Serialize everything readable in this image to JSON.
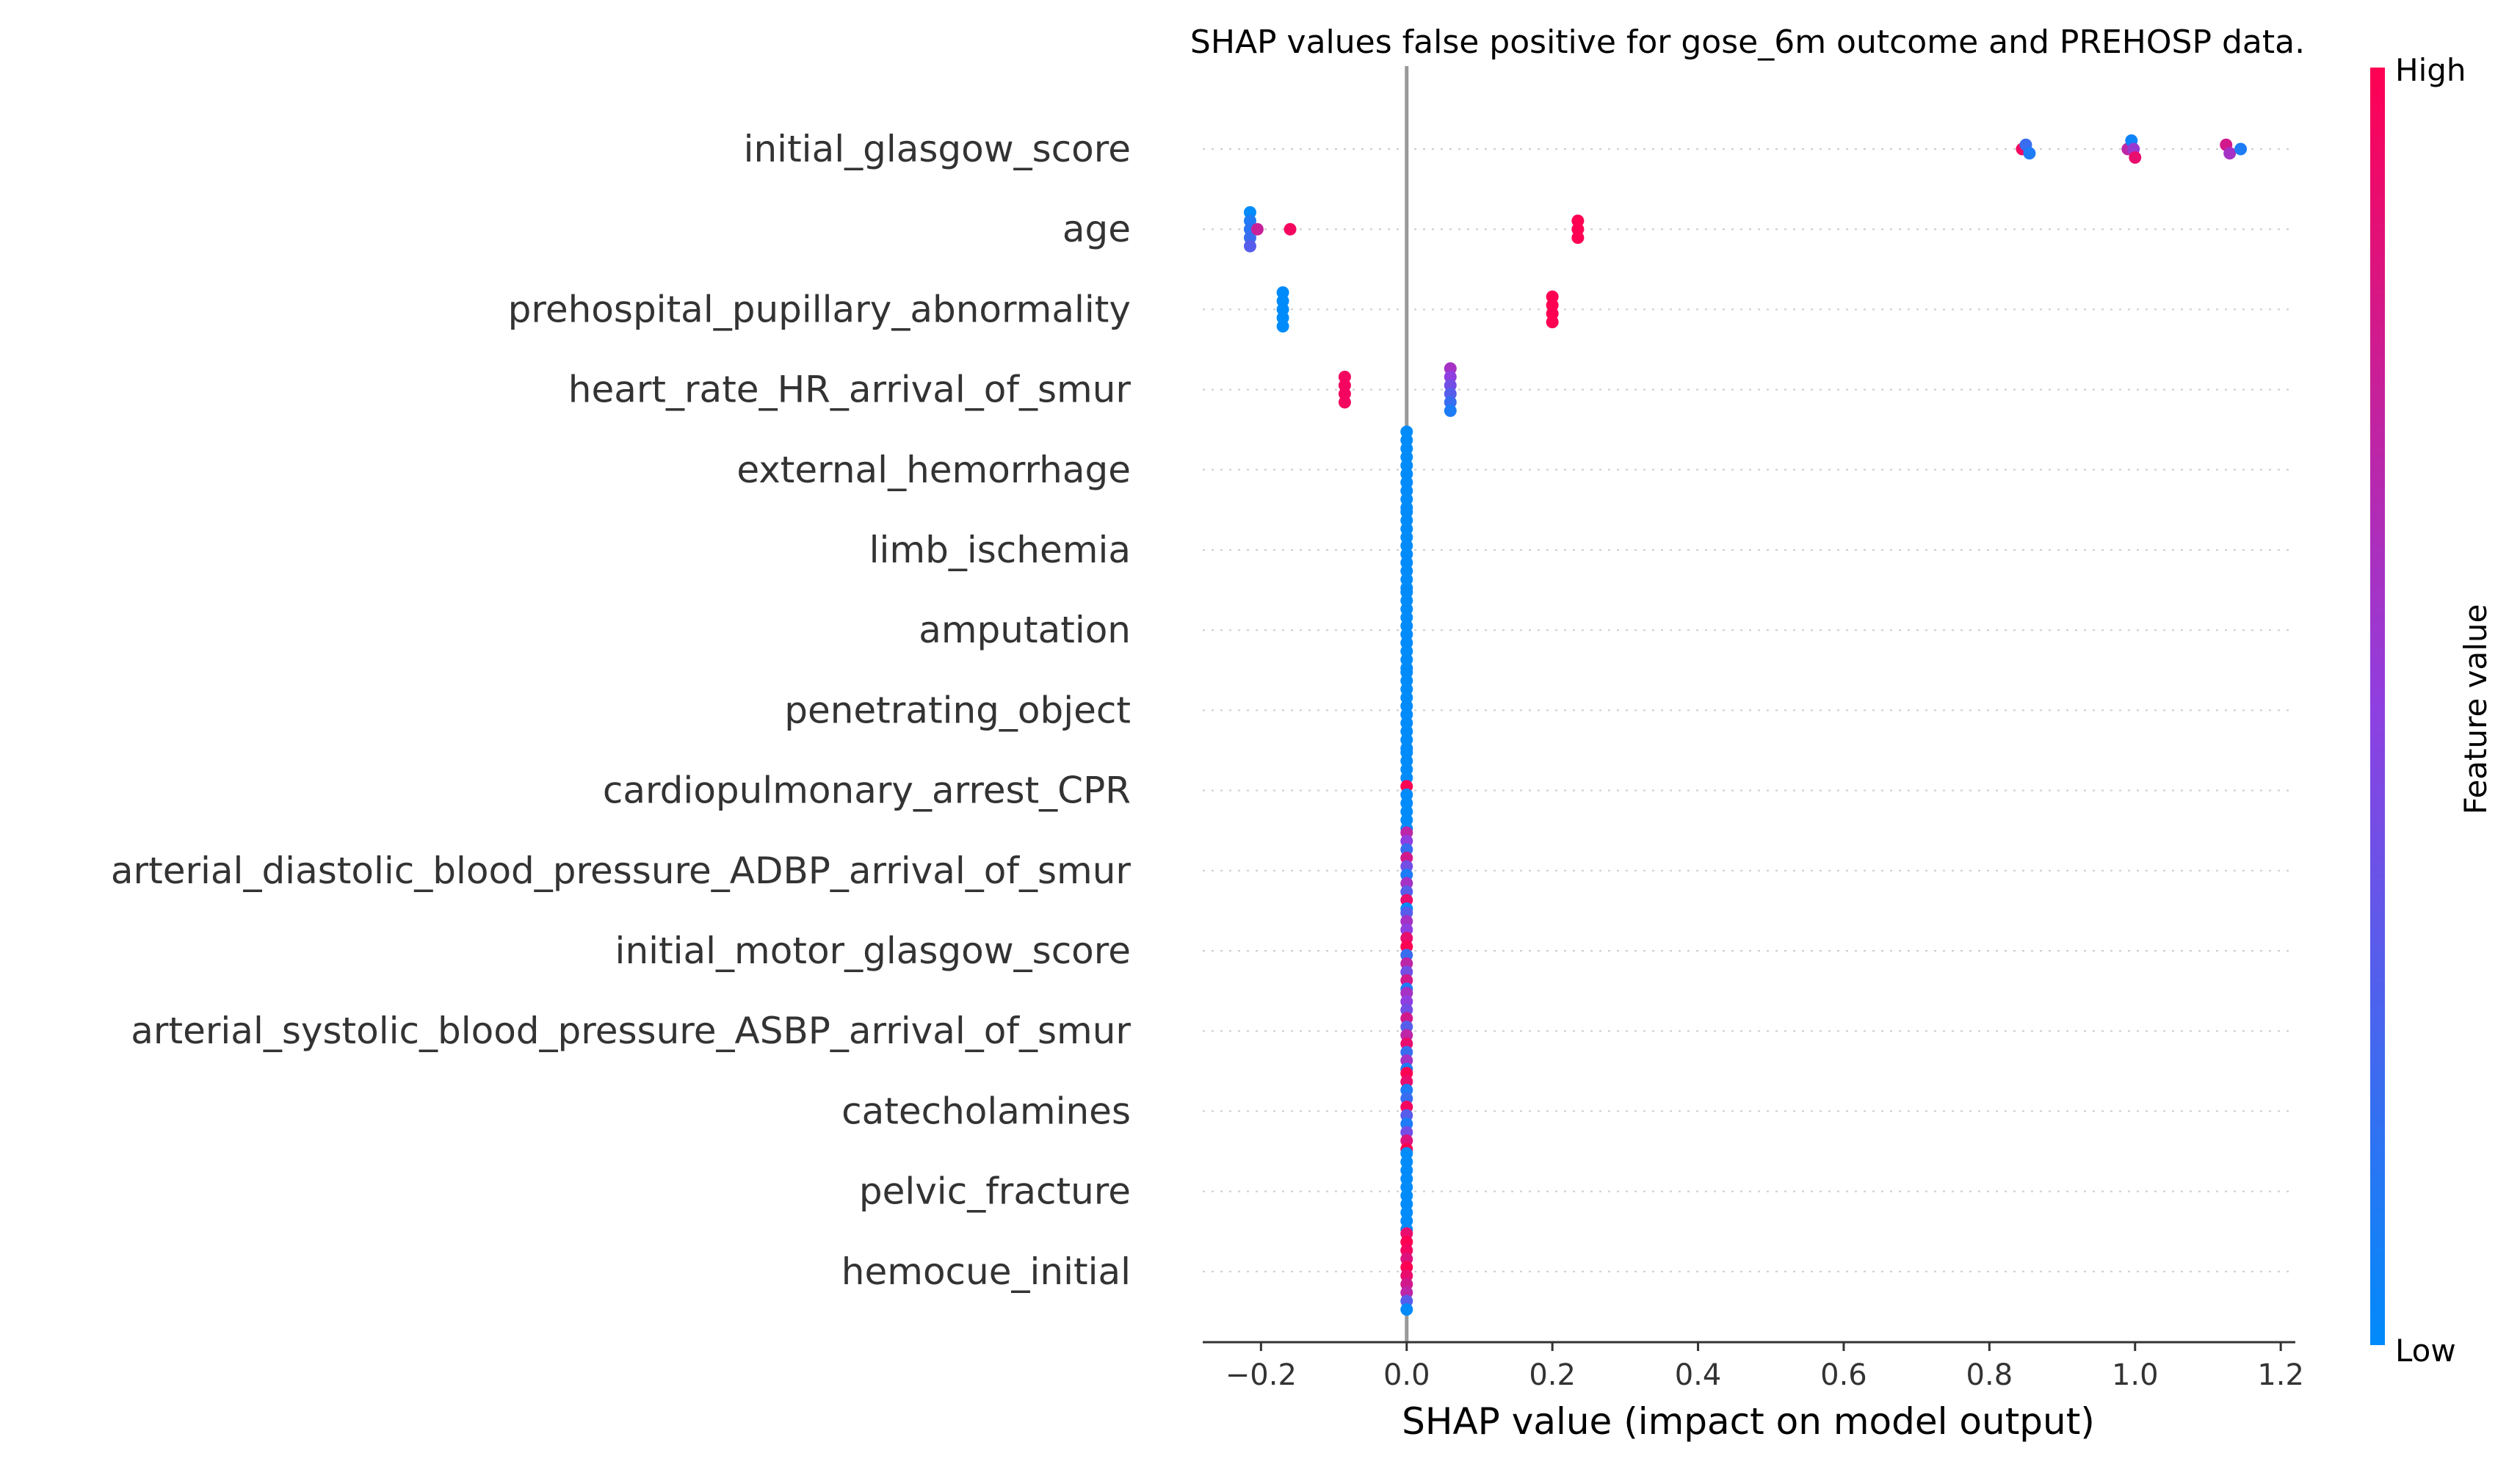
{
  "chart_data": {
    "type": "scatter",
    "title": "SHAP values false positive for gose_6m outcome and PREHOSP data.",
    "xlabel": "SHAP value (impact on model output)",
    "xlim": [
      -0.28,
      1.22
    ],
    "xticks": [
      -0.2,
      0.0,
      0.2,
      0.4,
      0.6,
      0.8,
      1.0,
      1.2
    ],
    "xtick_labels": [
      "−0.2",
      "0.0",
      "0.2",
      "0.4",
      "0.6",
      "0.8",
      "1.0",
      "1.2"
    ],
    "features": [
      "initial_glasgow_score",
      "age",
      "prehospital_pupillary_abnormality",
      "heart_rate_HR_arrival_of_smur",
      "external_hemorrhage",
      "limb_ischemia",
      "amputation",
      "penetrating_object",
      "cardiopulmonary_arrest_CPR",
      "arterial_diastolic_blood_pressure_ADBP_arrival_of_smur",
      "initial_motor_glasgow_score",
      "arterial_systolic_blood_pressure_ASBP_arrival_of_smur",
      "catecholamines",
      "pelvic_fracture",
      "hemocue_initial"
    ],
    "points": [
      [
        [
          0.845,
          0.95
        ],
        [
          0.85,
          0.2
        ],
        [
          0.855,
          0.1
        ],
        [
          0.99,
          0.7
        ],
        [
          0.995,
          0.05
        ],
        [
          0.998,
          0.55
        ],
        [
          1.0,
          0.9
        ],
        [
          1.125,
          0.8
        ],
        [
          1.13,
          0.6
        ],
        [
          1.145,
          0.1
        ]
      ],
      [
        [
          -0.215,
          0.0
        ],
        [
          -0.215,
          0.1
        ],
        [
          -0.215,
          0.15
        ],
        [
          -0.215,
          0.2
        ],
        [
          -0.215,
          0.3
        ],
        [
          -0.205,
          0.75
        ],
        [
          -0.16,
          0.95
        ],
        [
          0.235,
          1.0
        ],
        [
          0.235,
          1.0
        ],
        [
          0.235,
          1.0
        ]
      ],
      [
        [
          -0.17,
          0.0
        ],
        [
          -0.17,
          0.0
        ],
        [
          -0.17,
          0.0
        ],
        [
          -0.17,
          0.0
        ],
        [
          -0.17,
          0.0
        ],
        [
          0.2,
          1.0
        ],
        [
          0.2,
          1.0
        ],
        [
          0.2,
          1.0
        ],
        [
          0.2,
          1.0
        ]
      ],
      [
        [
          -0.085,
          0.95
        ],
        [
          -0.085,
          0.95
        ],
        [
          -0.085,
          0.95
        ],
        [
          -0.085,
          0.95
        ],
        [
          0.06,
          0.6
        ],
        [
          0.06,
          0.5
        ],
        [
          0.06,
          0.4
        ],
        [
          0.06,
          0.3
        ],
        [
          0.06,
          0.2
        ],
        [
          0.06,
          0.1
        ]
      ],
      [
        [
          0.0,
          0.0
        ],
        [
          0.0,
          0.0
        ],
        [
          0.0,
          0.0
        ],
        [
          0.0,
          0.0
        ],
        [
          0.0,
          0.0
        ],
        [
          0.0,
          0.0
        ],
        [
          0.0,
          0.0
        ],
        [
          0.0,
          0.0
        ],
        [
          0.0,
          0.0
        ],
        [
          0.0,
          0.0
        ]
      ],
      [
        [
          0.0,
          0.0
        ],
        [
          0.0,
          0.0
        ],
        [
          0.0,
          0.0
        ],
        [
          0.0,
          0.0
        ],
        [
          0.0,
          0.0
        ],
        [
          0.0,
          0.0
        ],
        [
          0.0,
          0.0
        ],
        [
          0.0,
          0.0
        ],
        [
          0.0,
          0.0
        ],
        [
          0.0,
          0.0
        ]
      ],
      [
        [
          0.0,
          0.0
        ],
        [
          0.0,
          0.0
        ],
        [
          0.0,
          0.0
        ],
        [
          0.0,
          0.0
        ],
        [
          0.0,
          0.0
        ],
        [
          0.0,
          0.0
        ],
        [
          0.0,
          0.0
        ],
        [
          0.0,
          0.0
        ],
        [
          0.0,
          0.0
        ],
        [
          0.0,
          0.0
        ]
      ],
      [
        [
          0.0,
          0.0
        ],
        [
          0.0,
          0.0
        ],
        [
          0.0,
          0.0
        ],
        [
          0.0,
          0.0
        ],
        [
          0.0,
          0.0
        ],
        [
          0.0,
          0.0
        ],
        [
          0.0,
          0.0
        ],
        [
          0.0,
          0.0
        ],
        [
          0.0,
          0.0
        ],
        [
          0.0,
          0.0
        ]
      ],
      [
        [
          0.0,
          0.0
        ],
        [
          0.0,
          0.0
        ],
        [
          0.0,
          0.0
        ],
        [
          0.0,
          0.0
        ],
        [
          0.0,
          1.0
        ],
        [
          0.0,
          0.0
        ],
        [
          0.0,
          0.0
        ],
        [
          0.0,
          0.0
        ],
        [
          0.0,
          0.0
        ],
        [
          0.0,
          0.0
        ]
      ],
      [
        [
          0.0,
          0.7
        ],
        [
          0.0,
          0.5
        ],
        [
          0.0,
          0.2
        ],
        [
          0.0,
          0.8
        ],
        [
          0.0,
          0.4
        ],
        [
          0.0,
          0.1
        ],
        [
          0.0,
          0.6
        ],
        [
          0.0,
          0.3
        ],
        [
          0.0,
          0.9
        ],
        [
          0.0,
          0.0
        ]
      ],
      [
        [
          0.0,
          0.3
        ],
        [
          0.0,
          0.6
        ],
        [
          0.0,
          0.5
        ],
        [
          0.0,
          0.9
        ],
        [
          0.0,
          1.0
        ],
        [
          0.0,
          0.2
        ],
        [
          0.0,
          0.7
        ],
        [
          0.0,
          0.4
        ],
        [
          0.0,
          0.8
        ],
        [
          0.0,
          0.1
        ]
      ],
      [
        [
          0.0,
          0.6
        ],
        [
          0.0,
          0.5
        ],
        [
          0.0,
          0.4
        ],
        [
          0.0,
          0.8
        ],
        [
          0.0,
          0.3
        ],
        [
          0.0,
          0.7
        ],
        [
          0.0,
          0.9
        ],
        [
          0.0,
          0.2
        ],
        [
          0.0,
          0.6
        ],
        [
          0.0,
          0.1
        ]
      ],
      [
        [
          0.0,
          1.0
        ],
        [
          0.0,
          0.9
        ],
        [
          0.0,
          0.1
        ],
        [
          0.0,
          0.2
        ],
        [
          0.0,
          0.95
        ],
        [
          0.0,
          0.3
        ],
        [
          0.0,
          0.1
        ],
        [
          0.0,
          0.4
        ],
        [
          0.0,
          0.85
        ],
        [
          0.0,
          1.0
        ]
      ],
      [
        [
          0.0,
          0.0
        ],
        [
          0.0,
          0.0
        ],
        [
          0.0,
          0.0
        ],
        [
          0.0,
          0.0
        ],
        [
          0.0,
          0.0
        ],
        [
          0.0,
          0.0
        ],
        [
          0.0,
          0.0
        ],
        [
          0.0,
          0.0
        ],
        [
          0.0,
          0.0
        ],
        [
          0.0,
          0.0
        ]
      ],
      [
        [
          0.0,
          0.9
        ],
        [
          0.0,
          1.0
        ],
        [
          0.0,
          0.95
        ],
        [
          0.0,
          0.85
        ],
        [
          0.0,
          1.0
        ],
        [
          0.0,
          0.9
        ],
        [
          0.0,
          0.8
        ],
        [
          0.0,
          0.7
        ],
        [
          0.0,
          0.3
        ],
        [
          0.0,
          0.0
        ]
      ]
    ],
    "colorbar": {
      "label": "Feature value",
      "high_label": "High",
      "low_label": "Low",
      "low_color": "#008bfb",
      "mid_color": "#8f3fe0",
      "high_color": "#ff0052"
    },
    "legend_position": "right"
  }
}
